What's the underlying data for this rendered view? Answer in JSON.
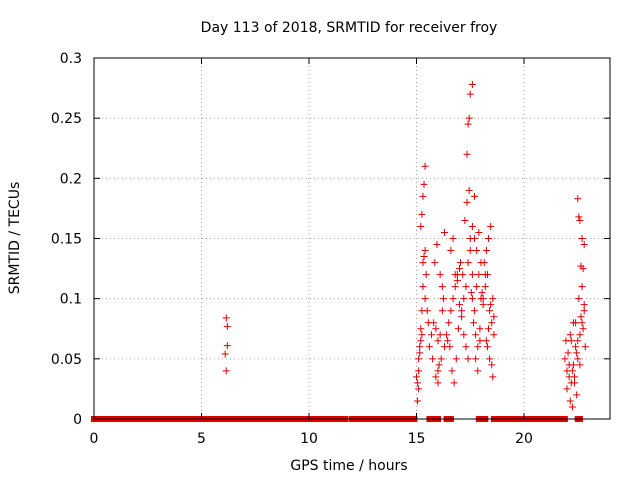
{
  "chart_data": {
    "type": "scatter",
    "title": "Day 113 of 2018, SRMTID for receiver froy",
    "xlabel": "GPS time / hours",
    "ylabel": "SRMTID / TECUs",
    "xlim": [
      0,
      24
    ],
    "ylim": [
      0,
      0.3
    ],
    "x_ticks": [
      0,
      5,
      10,
      15,
      20
    ],
    "x_tick_labels": [
      "0",
      "5",
      "10",
      "15",
      "20"
    ],
    "y_ticks": [
      0,
      0.05,
      0.1,
      0.15,
      0.2,
      0.25,
      0.3
    ],
    "y_tick_labels": [
      "0",
      "0.05",
      "0.1",
      "0.15",
      "0.2",
      "0.25",
      "0.3"
    ],
    "grid": true,
    "marker": "+",
    "color": "#e00000",
    "zero_segments": [
      [
        0,
        11.7
      ],
      [
        12.0,
        14.9
      ],
      [
        15.6,
        16.0
      ],
      [
        16.4,
        16.6
      ],
      [
        17.9,
        18.2
      ],
      [
        18.6,
        21.9
      ],
      [
        22.5,
        22.6
      ]
    ],
    "series": [
      {
        "name": "SRMTID",
        "x": [
          6.15,
          6.2,
          6.2,
          6.1,
          6.15,
          15.0,
          15.05,
          15.1,
          15.15,
          15.2,
          15.25,
          15.3,
          15.3,
          15.35,
          15.4,
          15.2,
          15.25,
          15.3,
          15.35,
          15.4,
          15.1,
          15.15,
          15.2,
          15.25,
          15.05,
          15.1,
          15.4,
          15.45,
          15.5,
          15.55,
          15.6,
          15.7,
          15.8,
          15.9,
          16.0,
          16.1,
          16.2,
          16.3,
          16.0,
          15.9,
          16.05,
          16.15,
          16.25,
          15.85,
          15.95,
          16.1,
          16.2,
          16.3,
          15.75,
          16.0,
          16.4,
          16.5,
          16.6,
          16.7,
          16.8,
          16.9,
          17.0,
          17.1,
          16.45,
          16.55,
          16.65,
          16.75,
          16.85,
          16.95,
          17.05,
          16.6,
          16.7,
          16.8,
          16.9,
          17.0,
          17.1,
          17.2,
          17.3,
          17.4,
          17.5,
          17.2,
          17.3,
          17.4,
          17.5,
          17.6,
          17.15,
          17.25,
          17.35,
          17.45,
          17.55,
          17.6,
          17.35,
          17.4,
          17.45,
          17.5,
          17.6,
          17.7,
          17.8,
          17.9,
          18.0,
          17.65,
          17.75,
          17.85,
          17.95,
          18.05,
          17.7,
          17.8,
          17.9,
          18.0,
          18.1,
          17.75,
          17.85,
          17.95,
          17.6,
          17.7,
          18.1,
          18.2,
          18.3,
          18.4,
          18.5,
          18.6,
          18.15,
          18.25,
          18.35,
          18.45,
          18.55,
          18.3,
          18.4,
          18.5,
          18.6,
          18.45,
          18.35,
          18.25,
          18.55,
          18.2,
          21.9,
          22.0,
          22.1,
          22.2,
          22.3,
          22.4,
          21.95,
          22.05,
          22.15,
          22.25,
          22.35,
          22.0,
          22.1,
          22.2,
          22.3,
          22.4,
          22.15,
          22.25,
          22.45,
          22.35,
          22.5,
          22.6,
          22.7,
          22.8,
          22.55,
          22.65,
          22.75,
          22.85,
          22.6,
          22.7,
          22.8,
          22.5,
          22.55,
          22.65,
          22.75,
          22.45,
          22.5,
          22.6,
          22.8,
          22.7
        ],
        "y": [
          0.084,
          0.077,
          0.061,
          0.054,
          0.04,
          0.035,
          0.03,
          0.05,
          0.055,
          0.065,
          0.07,
          0.11,
          0.13,
          0.135,
          0.14,
          0.16,
          0.17,
          0.185,
          0.195,
          0.21,
          0.04,
          0.06,
          0.075,
          0.09,
          0.015,
          0.025,
          0.1,
          0.12,
          0.09,
          0.08,
          0.06,
          0.07,
          0.08,
          0.075,
          0.065,
          0.07,
          0.09,
          0.06,
          0.04,
          0.035,
          0.045,
          0.05,
          0.1,
          0.13,
          0.145,
          0.12,
          0.11,
          0.155,
          0.05,
          0.03,
          0.07,
          0.08,
          0.09,
          0.1,
          0.11,
          0.12,
          0.095,
          0.085,
          0.065,
          0.06,
          0.04,
          0.03,
          0.05,
          0.075,
          0.13,
          0.14,
          0.15,
          0.12,
          0.115,
          0.125,
          0.09,
          0.1,
          0.11,
          0.13,
          0.15,
          0.07,
          0.06,
          0.05,
          0.14,
          0.16,
          0.12,
          0.165,
          0.18,
          0.19,
          0.105,
          0.12,
          0.22,
          0.245,
          0.25,
          0.27,
          0.1,
          0.09,
          0.11,
          0.12,
          0.13,
          0.08,
          0.07,
          0.06,
          0.075,
          0.105,
          0.15,
          0.14,
          0.155,
          0.1,
          0.095,
          0.05,
          0.04,
          0.065,
          0.278,
          0.185,
          0.1,
          0.11,
          0.12,
          0.09,
          0.08,
          0.07,
          0.13,
          0.14,
          0.15,
          0.16,
          0.1,
          0.06,
          0.05,
          0.045,
          0.085,
          0.095,
          0.075,
          0.065,
          0.035,
          0.12,
          0.05,
          0.04,
          0.035,
          0.03,
          0.045,
          0.06,
          0.065,
          0.055,
          0.07,
          0.04,
          0.03,
          0.025,
          0.045,
          0.065,
          0.08,
          0.08,
          0.015,
          0.01,
          0.02,
          0.035,
          0.065,
          0.07,
          0.08,
          0.09,
          0.1,
          0.085,
          0.075,
          0.06,
          0.165,
          0.15,
          0.145,
          0.183,
          0.168,
          0.127,
          0.125,
          0.055,
          0.05,
          0.045,
          0.095,
          0.11
        ]
      }
    ]
  }
}
